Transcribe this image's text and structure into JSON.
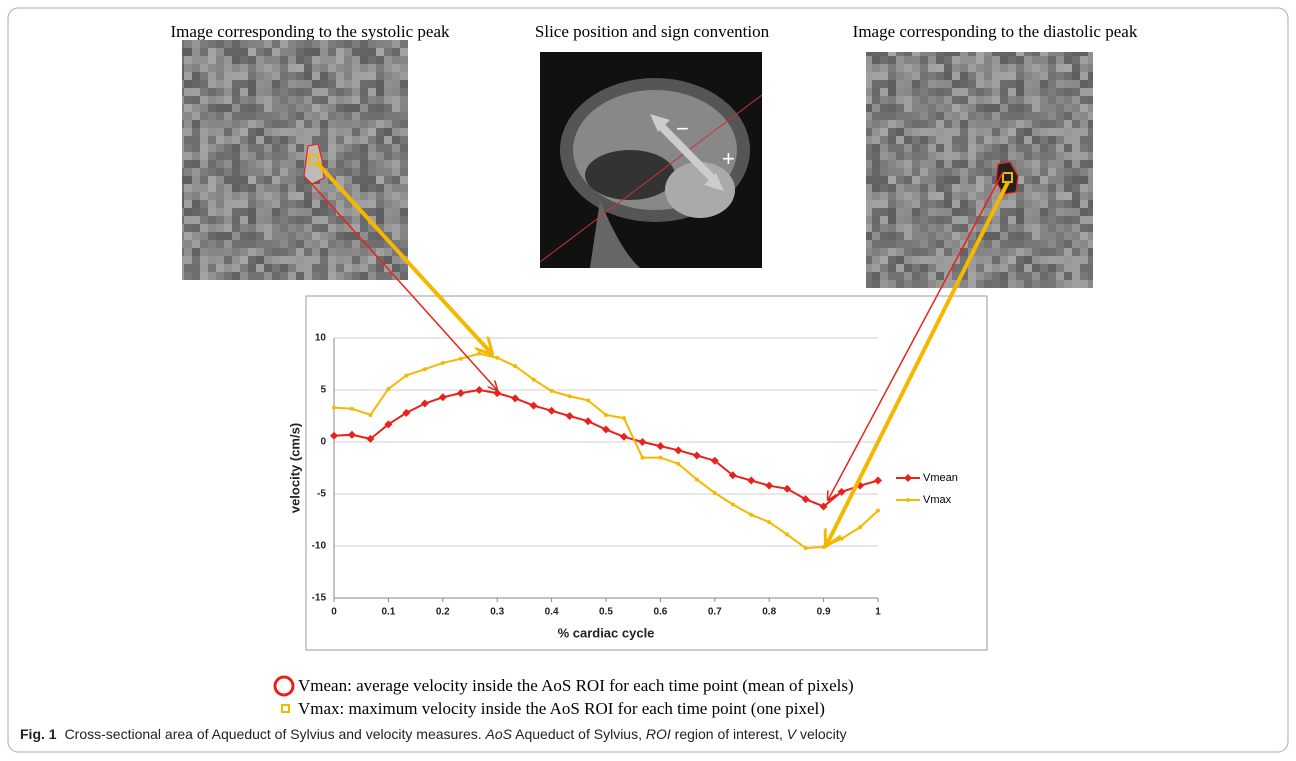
{
  "panels": [
    {
      "title": "Image corresponding to the systolic peak"
    },
    {
      "title": "Slice position and sign convention",
      "minus_label": "−",
      "plus_label": "+"
    },
    {
      "title": "Image corresponding to the diastolic peak"
    }
  ],
  "chart_data": {
    "type": "line",
    "x_label": "% cardiac cycle",
    "y_label": "velocity (cm/s)",
    "x": [
      0,
      0.033,
      0.067,
      0.1,
      0.133,
      0.167,
      0.2,
      0.233,
      0.267,
      0.3,
      0.333,
      0.367,
      0.4,
      0.433,
      0.467,
      0.5,
      0.533,
      0.567,
      0.6,
      0.633,
      0.667,
      0.7,
      0.733,
      0.767,
      0.8,
      0.833,
      0.867,
      0.9,
      0.933,
      0.967,
      1
    ],
    "series": [
      {
        "name": "Vmean",
        "color": "#e8221b",
        "marker": "diamond",
        "values": [
          0.6,
          0.7,
          0.3,
          1.7,
          2.8,
          3.7,
          4.3,
          4.7,
          5.0,
          4.7,
          4.2,
          3.5,
          3.0,
          2.5,
          2.0,
          1.2,
          0.5,
          0.0,
          -0.4,
          -0.8,
          -1.3,
          -1.8,
          -3.2,
          -3.7,
          -4.2,
          -4.5,
          -5.5,
          -6.2,
          -4.8,
          -4.2,
          -3.7
        ]
      },
      {
        "name": "Vmax",
        "color": "#f5b800",
        "marker": "dot",
        "values": [
          3.3,
          3.2,
          2.6,
          5.1,
          6.4,
          7.0,
          7.6,
          8.0,
          8.5,
          8.1,
          7.3,
          6.0,
          4.9,
          4.4,
          4.0,
          2.6,
          2.3,
          -1.5,
          -1.5,
          -2.1,
          -3.6,
          -4.9,
          -6.0,
          -7.0,
          -7.7,
          -8.9,
          -10.2,
          -10.1,
          -9.3,
          -8.2,
          -6.6
        ]
      }
    ],
    "xlim": [
      0,
      1
    ],
    "xticks": [
      0,
      0.1,
      0.2,
      0.3,
      0.4,
      0.5,
      0.6,
      0.7,
      0.8,
      0.9,
      1
    ],
    "ylim": [
      -15,
      10
    ],
    "yticks": [
      10,
      5,
      0,
      -5,
      -10,
      -15
    ],
    "grid": true,
    "legend": "right"
  },
  "legend_notes": [
    "Vmean: average velocity inside the AoS ROI for each time point (mean of pixels)",
    "Vmax: maximum velocity inside the AoS ROI for each time point (one pixel)"
  ],
  "caption": {
    "label": "Fig. 1",
    "parts": [
      "Cross-sectional area of Aqueduct of Sylvius and velocity measures. ",
      "AoS",
      " Aqueduct of Sylvius, ",
      "ROI",
      " region of interest, ",
      "V",
      " velocity"
    ]
  }
}
